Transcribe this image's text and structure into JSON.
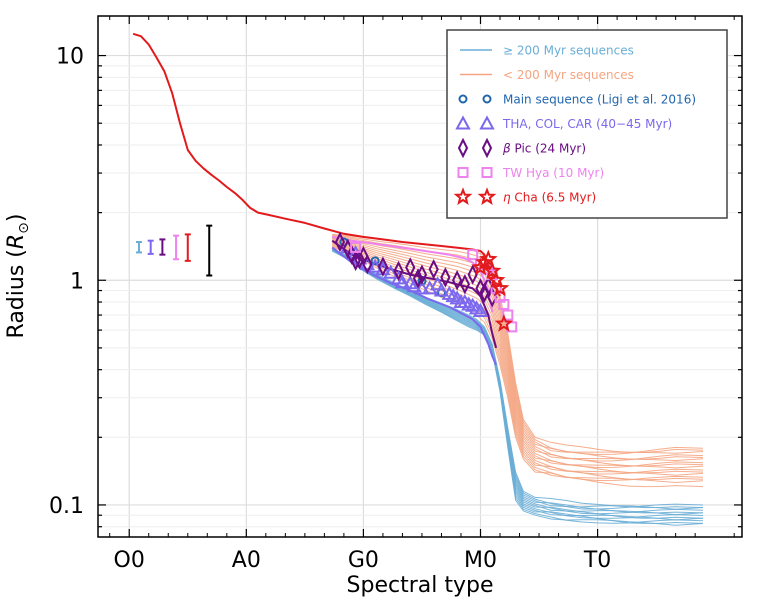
{
  "chart_data": {
    "type": "line",
    "title": "",
    "xlabel": "Spectral type",
    "ylabel": "Radius (R⊙)",
    "ylabel_main": "Radius (",
    "ylabel_sym": "R",
    "ylabel_sub": "⊙",
    "ylabel_close": ")",
    "yscale": "log",
    "xlim": [
      -8,
      157
    ],
    "ylim": [
      0.072,
      15
    ],
    "x_ticks": [
      {
        "value": 0,
        "label": "O0"
      },
      {
        "value": 30,
        "label": "A0"
      },
      {
        "value": 60,
        "label": "G0"
      },
      {
        "value": 90,
        "label": "M0"
      },
      {
        "value": 120,
        "label": "T0"
      }
    ],
    "y_ticks": [
      {
        "value": 0.1,
        "label": "0.1"
      },
      {
        "value": 1,
        "label": "1"
      },
      {
        "value": 10,
        "label": "10"
      }
    ],
    "grid": true,
    "legend_position": "top-right",
    "legend": [
      {
        "label": "≥ 200 Myr sequences",
        "color": "#6aaed6",
        "marker": "line"
      },
      {
        "label": "< 200 Myr sequences",
        "color": "#f4a582",
        "marker": "line"
      },
      {
        "label": "Main sequence (Ligi et al. 2016)",
        "color": "#2166ac",
        "marker": "circle"
      },
      {
        "label": "THA, COL, CAR (40−45 Myr)",
        "color": "#7b68ee",
        "marker": "triangle"
      },
      {
        "label": "β Pic (24 Myr)",
        "color": "#6a0d83",
        "marker": "diamond"
      },
      {
        "label": "TW Hya (10 Myr)",
        "color": "#ee82ee",
        "marker": "square"
      },
      {
        "label": "η Cha (6.5 Myr)",
        "color": "#e31a1c",
        "marker": "star"
      }
    ],
    "error_bars": [
      {
        "x": 2.5,
        "y": 1.4,
        "lo": 1.33,
        "hi": 1.48,
        "color": "#6aaed6"
      },
      {
        "x": 5.5,
        "y": 1.4,
        "lo": 1.31,
        "hi": 1.5,
        "color": "#7b68ee"
      },
      {
        "x": 8.5,
        "y": 1.4,
        "lo": 1.3,
        "hi": 1.52,
        "color": "#6a0d83"
      },
      {
        "x": 12,
        "y": 1.4,
        "lo": 1.24,
        "hi": 1.58,
        "color": "#ee82ee"
      },
      {
        "x": 15,
        "y": 1.4,
        "lo": 1.22,
        "hi": 1.6,
        "color": "#e31a1c"
      },
      {
        "x": 20.5,
        "y": 1.4,
        "lo": 1.05,
        "hi": 1.75,
        "color": "#000000"
      }
    ],
    "series": [
      {
        "name": "η Cha (6.5 Myr) sequence",
        "color": "#e31a1c",
        "width": 2,
        "x": [
          1,
          3,
          5,
          7,
          9,
          11,
          13,
          15,
          17,
          19,
          21,
          23,
          25,
          27,
          29,
          31,
          33,
          36,
          40,
          45,
          50,
          55,
          60,
          65,
          70,
          75,
          80,
          85,
          88,
          90,
          91
        ],
        "y": [
          12.5,
          12.2,
          11.2,
          9.8,
          8.5,
          6.8,
          5.0,
          3.8,
          3.4,
          3.15,
          2.95,
          2.78,
          2.6,
          2.45,
          2.28,
          2.1,
          2.0,
          1.95,
          1.88,
          1.8,
          1.7,
          1.61,
          1.56,
          1.52,
          1.48,
          1.45,
          1.42,
          1.39,
          1.37,
          1.35,
          1.3
        ]
      },
      {
        "name": "η Cha (6.5 Myr) sequence tail",
        "color": "#e31a1c",
        "width": 2,
        "x": [
          91,
          92,
          93,
          94,
          95
        ],
        "y": [
          1.3,
          1.18,
          1.05,
          0.93,
          0.85
        ]
      },
      {
        "name": "TW Hya (10 Myr) sequence",
        "color": "#ee82ee",
        "width": 2,
        "x": [
          52,
          57,
          62,
          67,
          72,
          77,
          82,
          86,
          88,
          90,
          92,
          93
        ],
        "y": [
          1.56,
          1.5,
          1.46,
          1.42,
          1.38,
          1.34,
          1.3,
          1.25,
          1.2,
          1.1,
          0.9,
          0.72
        ]
      },
      {
        "name": "β Pic (24 Myr) sequence",
        "color": "#6a0d83",
        "width": 2,
        "x": [
          52,
          57,
          62,
          67,
          72,
          77,
          82,
          86,
          88,
          90,
          92,
          93,
          94
        ],
        "y": [
          1.5,
          1.3,
          1.2,
          1.12,
          1.06,
          1.02,
          0.98,
          0.94,
          0.92,
          0.85,
          0.7,
          0.58,
          0.5
        ]
      },
      {
        "name": "THA, COL, CAR (40−45 Myr) sequence",
        "color": "#7b68ee",
        "width": 2,
        "x": [
          52,
          57,
          62,
          67,
          72,
          77,
          82,
          86,
          88,
          90,
          92,
          93,
          94
        ],
        "y": [
          1.4,
          1.2,
          1.07,
          0.97,
          0.9,
          0.82,
          0.76,
          0.7,
          0.67,
          0.62,
          0.52,
          0.46,
          0.42
        ]
      }
    ],
    "family_young": {
      "name": "< 200 Myr sequences",
      "color": "#f4a582",
      "count": 16,
      "x": [
        52,
        56,
        60,
        64,
        68,
        72,
        76,
        80,
        84,
        87,
        89,
        91,
        93,
        95,
        97,
        99,
        101,
        104,
        108,
        112,
        116,
        120,
        124,
        128,
        132,
        136,
        140,
        147
      ],
      "y_top": [
        1.6,
        1.58,
        1.55,
        1.52,
        1.5,
        1.47,
        1.44,
        1.42,
        1.4,
        1.37,
        1.34,
        1.28,
        1.1,
        0.85,
        0.58,
        0.35,
        0.24,
        0.2,
        0.185,
        0.18,
        0.178,
        0.176,
        0.175,
        0.175,
        0.176,
        0.178,
        0.18,
        0.18
      ],
      "y_bot": [
        1.4,
        1.33,
        1.22,
        1.12,
        1.04,
        0.97,
        0.9,
        0.84,
        0.78,
        0.73,
        0.7,
        0.65,
        0.55,
        0.42,
        0.3,
        0.2,
        0.16,
        0.14,
        0.135,
        0.13,
        0.128,
        0.126,
        0.125,
        0.124,
        0.124,
        0.124,
        0.124,
        0.124
      ]
    },
    "family_old": {
      "name": "≥ 200 Myr sequences",
      "color": "#6aaed6",
      "count": 12,
      "x": [
        52,
        56,
        60,
        64,
        68,
        72,
        76,
        80,
        84,
        87,
        89,
        91,
        93,
        95,
        97,
        99,
        101,
        104,
        108,
        112,
        116,
        120,
        124,
        128,
        132,
        136,
        140,
        147
      ],
      "y_top": [
        1.38,
        1.28,
        1.15,
        1.05,
        0.97,
        0.9,
        0.84,
        0.79,
        0.74,
        0.7,
        0.67,
        0.62,
        0.52,
        0.36,
        0.22,
        0.14,
        0.115,
        0.108,
        0.104,
        0.102,
        0.1,
        0.1,
        0.1,
        0.1,
        0.1,
        0.1,
        0.1,
        0.1
      ],
      "y_bot": [
        1.35,
        1.24,
        1.1,
        1.0,
        0.92,
        0.85,
        0.78,
        0.72,
        0.66,
        0.62,
        0.6,
        0.57,
        0.48,
        0.32,
        0.18,
        0.105,
        0.094,
        0.09,
        0.088,
        0.086,
        0.085,
        0.084,
        0.083,
        0.082,
        0.082,
        0.082,
        0.082,
        0.082
      ]
    },
    "scatter": [
      {
        "name": "Main sequence (Ligi et al. 2016)",
        "marker": "circle",
        "color": "#2166ac",
        "x": [
          55,
          63,
          75,
          80
        ],
        "y": [
          1.48,
          1.22,
          0.99,
          0.88
        ]
      },
      {
        "name": "THA, COL, CAR (40−45 Myr)",
        "marker": "triangle",
        "color": "#7b68ee",
        "x": [
          56,
          58,
          59,
          61,
          63,
          65,
          67,
          69,
          70,
          72,
          73,
          75,
          77,
          79,
          80,
          82,
          83,
          84,
          85,
          86,
          87,
          88,
          89,
          90
        ],
        "y": [
          1.4,
          1.32,
          1.25,
          1.18,
          1.15,
          1.12,
          1.08,
          1.02,
          0.98,
          0.97,
          0.94,
          0.92,
          0.92,
          0.96,
          0.9,
          0.87,
          0.85,
          0.83,
          0.8,
          0.8,
          0.78,
          0.77,
          0.75,
          0.73
        ]
      },
      {
        "name": "β Pic (24 Myr)",
        "marker": "diamond",
        "color": "#6a0d83",
        "x": [
          54,
          56,
          57,
          58,
          59,
          60,
          61,
          65,
          69,
          72,
          74,
          75,
          78,
          81,
          84,
          86,
          88,
          90,
          91,
          92,
          93
        ],
        "y": [
          1.48,
          1.38,
          1.3,
          1.22,
          1.24,
          1.28,
          1.18,
          1.15,
          1.1,
          1.14,
          1.02,
          1.06,
          1.12,
          1.03,
          1.0,
          0.96,
          1.06,
          0.92,
          0.88,
          0.94,
          0.84
        ]
      },
      {
        "name": "TW Hya (10 Myr)",
        "marker": "square",
        "color": "#ee82ee",
        "x": [
          58,
          88,
          90,
          92,
          93,
          94,
          95,
          96,
          97,
          98
        ],
        "y": [
          1.4,
          1.3,
          1.18,
          1.12,
          1.06,
          0.92,
          0.84,
          0.78,
          0.7,
          0.62
        ]
      },
      {
        "name": "η Cha (6.5 Myr)",
        "marker": "star",
        "color": "#e31a1c",
        "x": [
          90,
          91,
          92,
          93,
          94,
          95,
          96
        ],
        "y": [
          1.14,
          1.2,
          1.24,
          1.1,
          1.0,
          0.92,
          0.64
        ]
      }
    ]
  }
}
